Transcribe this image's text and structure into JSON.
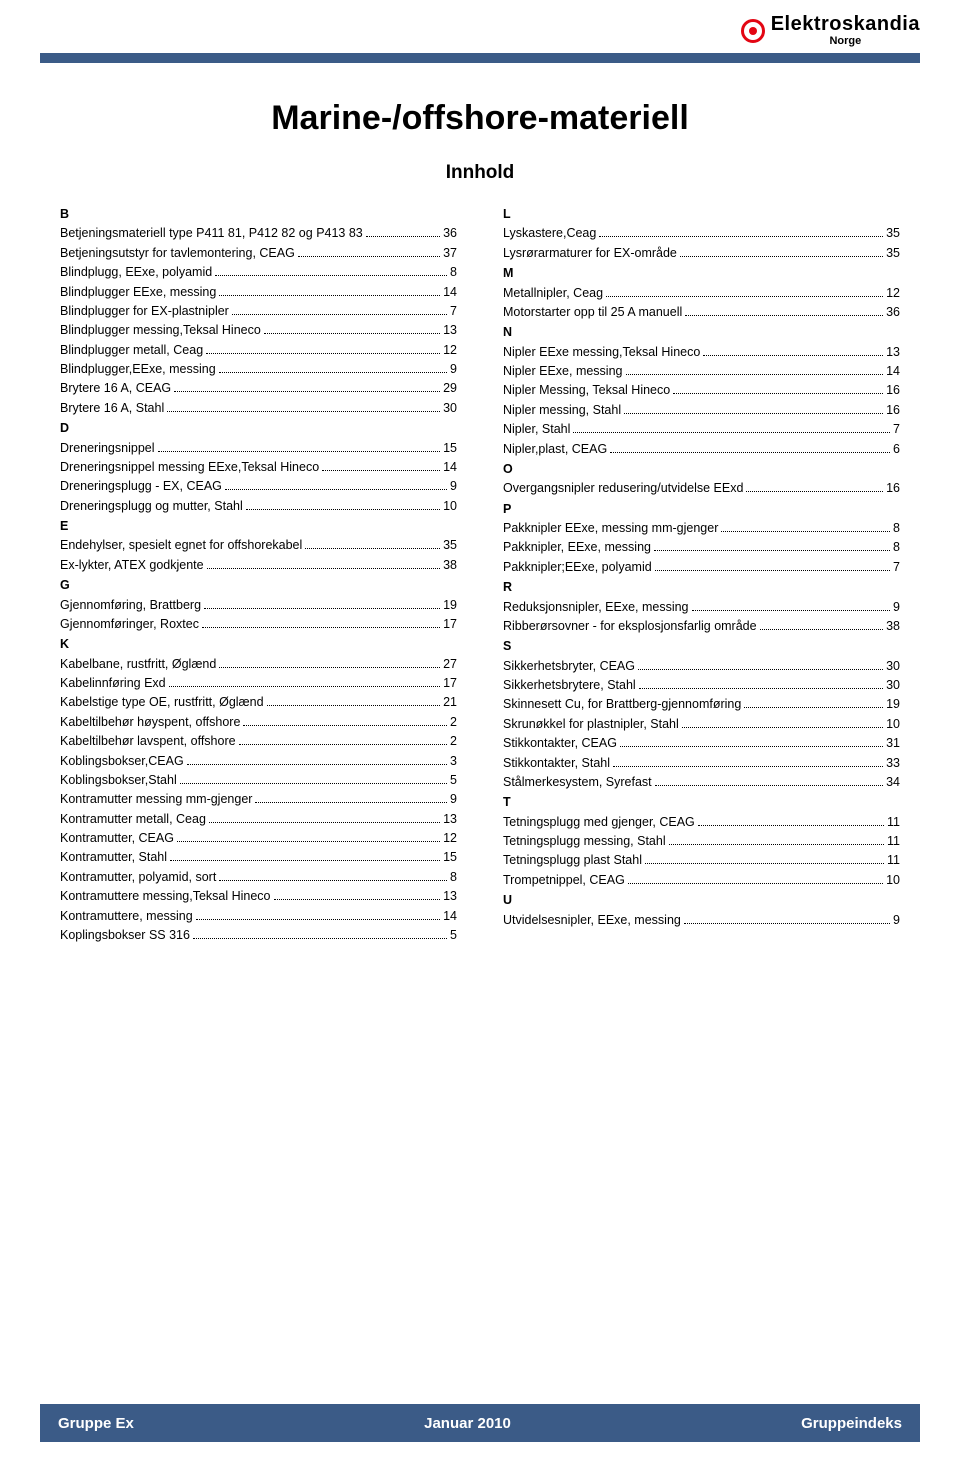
{
  "brand": {
    "name": "Elektroskandia",
    "sub": "Norge"
  },
  "title": "Marine-/offshore-materiell",
  "subtitle": "Innhold",
  "colors": {
    "accent": "#3b5b87",
    "brand_red": "#e30613",
    "text": "#000000",
    "background": "#ffffff"
  },
  "footer": {
    "left": "Gruppe Ex",
    "center": "Januar 2010",
    "right": "Gruppeindeks"
  },
  "columns": [
    [
      {
        "letter": "B"
      },
      {
        "label": "Betjeningsmateriell type P411 81, P412 82 og P413 83",
        "page": 36
      },
      {
        "label": "Betjeningsutstyr for tavlemontering, CEAG",
        "page": 37
      },
      {
        "label": "Blindplugg, EExe, polyamid",
        "page": 8
      },
      {
        "label": "Blindplugger EExe, messing",
        "page": 14
      },
      {
        "label": "Blindplugger for EX-plastnipler",
        "page": 7
      },
      {
        "label": "Blindplugger messing,Teksal Hineco",
        "page": 13
      },
      {
        "label": "Blindplugger metall, Ceag",
        "page": 12
      },
      {
        "label": "Blindplugger,EExe, messing",
        "page": 9
      },
      {
        "label": "Brytere 16 A, CEAG",
        "page": 29
      },
      {
        "label": "Brytere 16 A, Stahl",
        "page": 30
      },
      {
        "letter": "D"
      },
      {
        "label": "Dreneringsnippel",
        "page": 15
      },
      {
        "label": "Dreneringsnippel messing EExe,Teksal Hineco",
        "page": 14
      },
      {
        "label": "Dreneringsplugg - EX, CEAG",
        "page": 9
      },
      {
        "label": "Dreneringsplugg og mutter, Stahl",
        "page": 10
      },
      {
        "letter": "E"
      },
      {
        "label": "Endehylser, spesielt egnet for offshorekabel",
        "page": 35
      },
      {
        "label": "Ex-lykter, ATEX godkjente",
        "page": 38
      },
      {
        "letter": "G"
      },
      {
        "label": "Gjennomføring, Brattberg",
        "page": 19
      },
      {
        "label": "Gjennomføringer, Roxtec",
        "page": 17
      },
      {
        "letter": "K"
      },
      {
        "label": "Kabelbane, rustfritt, Øglænd",
        "page": 27
      },
      {
        "label": "Kabelinnføring Exd",
        "page": 17
      },
      {
        "label": "Kabelstige type OE, rustfritt, Øglænd",
        "page": 21
      },
      {
        "label": "Kabeltilbehør høyspent, offshore",
        "page": 2
      },
      {
        "label": "Kabeltilbehør lavspent, offshore",
        "page": 2
      },
      {
        "label": "Koblingsbokser,CEAG",
        "page": 3
      },
      {
        "label": "Koblingsbokser,Stahl",
        "page": 5
      },
      {
        "label": "Kontramutter messing mm-gjenger",
        "page": 9
      },
      {
        "label": "Kontramutter metall, Ceag",
        "page": 13
      },
      {
        "label": "Kontramutter, CEAG",
        "page": 12
      },
      {
        "label": "Kontramutter, Stahl",
        "page": 15
      },
      {
        "label": "Kontramutter, polyamid, sort",
        "page": 8
      },
      {
        "label": "Kontramuttere messing,Teksal Hineco",
        "page": 13
      },
      {
        "label": "Kontramuttere, messing",
        "page": 14
      },
      {
        "label": "Koplingsbokser SS 316",
        "page": 5
      }
    ],
    [
      {
        "letter": "L"
      },
      {
        "label": "Lyskastere,Ceag",
        "page": 35
      },
      {
        "label": "Lysrørarmaturer for EX-område",
        "page": 35
      },
      {
        "letter": "M"
      },
      {
        "label": "Metallnipler, Ceag",
        "page": 12
      },
      {
        "label": "Motorstarter opp til 25 A manuell",
        "page": 36
      },
      {
        "letter": "N"
      },
      {
        "label": "Nipler EExe messing,Teksal Hineco",
        "page": 13
      },
      {
        "label": "Nipler EExe, messing",
        "page": 14
      },
      {
        "label": "Nipler Messing, Teksal Hineco",
        "page": 16
      },
      {
        "label": "Nipler messing, Stahl",
        "page": 16
      },
      {
        "label": "Nipler, Stahl",
        "page": 7
      },
      {
        "label": "Nipler,plast, CEAG",
        "page": 6
      },
      {
        "letter": "O"
      },
      {
        "label": "Overgangsnipler redusering/utvidelse EExd",
        "page": 16
      },
      {
        "letter": "P"
      },
      {
        "label": "Pakknipler EExe, messing mm-gjenger",
        "page": 8
      },
      {
        "label": "Pakknipler, EExe, messing",
        "page": 8
      },
      {
        "label": "Pakknipler;EExe, polyamid",
        "page": 7
      },
      {
        "letter": "R"
      },
      {
        "label": "Reduksjonsnipler, EExe, messing",
        "page": 9
      },
      {
        "label": "Ribberørsovner - for eksplosjonsfarlig område",
        "page": 38
      },
      {
        "letter": "S"
      },
      {
        "label": "Sikkerhetsbryter, CEAG",
        "page": 30
      },
      {
        "label": "Sikkerhetsbrytere, Stahl",
        "page": 30
      },
      {
        "label": "Skinnesett Cu, for Brattberg-gjennomføring",
        "page": 19
      },
      {
        "label": "Skrunøkkel for plastnipler, Stahl",
        "page": 10
      },
      {
        "label": "Stikkontakter, CEAG",
        "page": 31
      },
      {
        "label": "Stikkontakter, Stahl",
        "page": 33
      },
      {
        "label": "Stålmerkesystem, Syrefast",
        "page": 34
      },
      {
        "letter": "T"
      },
      {
        "label": "Tetningsplugg med gjenger, CEAG",
        "page": 11
      },
      {
        "label": "Tetningsplugg messing, Stahl",
        "page": 11
      },
      {
        "label": "Tetningsplugg plast Stahl",
        "page": 11
      },
      {
        "label": "Trompetnippel, CEAG",
        "page": 10
      },
      {
        "letter": "U"
      },
      {
        "label": "Utvidelsesnipler, EExe, messing",
        "page": 9
      }
    ]
  ]
}
